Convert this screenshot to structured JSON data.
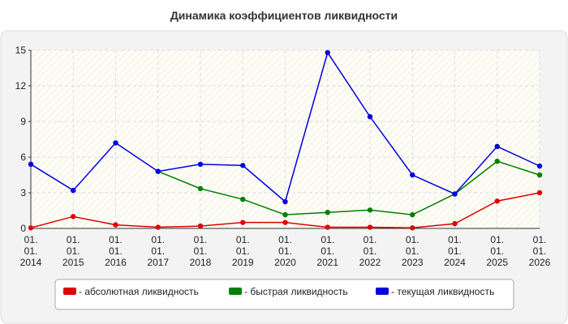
{
  "chart_data": {
    "type": "line",
    "title": "Динамика коэффициентов ликвидности",
    "categories": [
      "01.01.2014",
      "01.01.2015",
      "01.01.2016",
      "01.01.2017",
      "01.01.2018",
      "01.01.2019",
      "01.01.2020",
      "01.01.2021",
      "01.01.2022",
      "01.01.2023",
      "01.01.2024",
      "01.01.2025",
      "01.01.2026"
    ],
    "series": [
      {
        "name": "- абсолютная ликвидность",
        "color": "#e00000",
        "values": [
          0.05,
          1.0,
          0.3,
          0.1,
          0.2,
          0.5,
          0.5,
          0.1,
          0.1,
          0.05,
          0.4,
          2.3,
          3.0
        ]
      },
      {
        "name": "- быстрая ликвидность",
        "color": "#008000",
        "values": [
          null,
          null,
          null,
          4.8,
          3.35,
          2.45,
          1.15,
          1.35,
          1.55,
          1.15,
          2.9,
          5.65,
          4.5
        ]
      },
      {
        "name": "- текущая ликвидность",
        "color": "#0000e0",
        "values": [
          5.4,
          3.2,
          7.2,
          4.8,
          5.4,
          5.3,
          2.25,
          14.8,
          9.4,
          4.5,
          2.9,
          6.9,
          5.25
        ]
      }
    ],
    "ylim": [
      0,
      15
    ],
    "yticks": [
      0,
      3,
      6,
      9,
      12,
      15
    ],
    "grid": true
  }
}
